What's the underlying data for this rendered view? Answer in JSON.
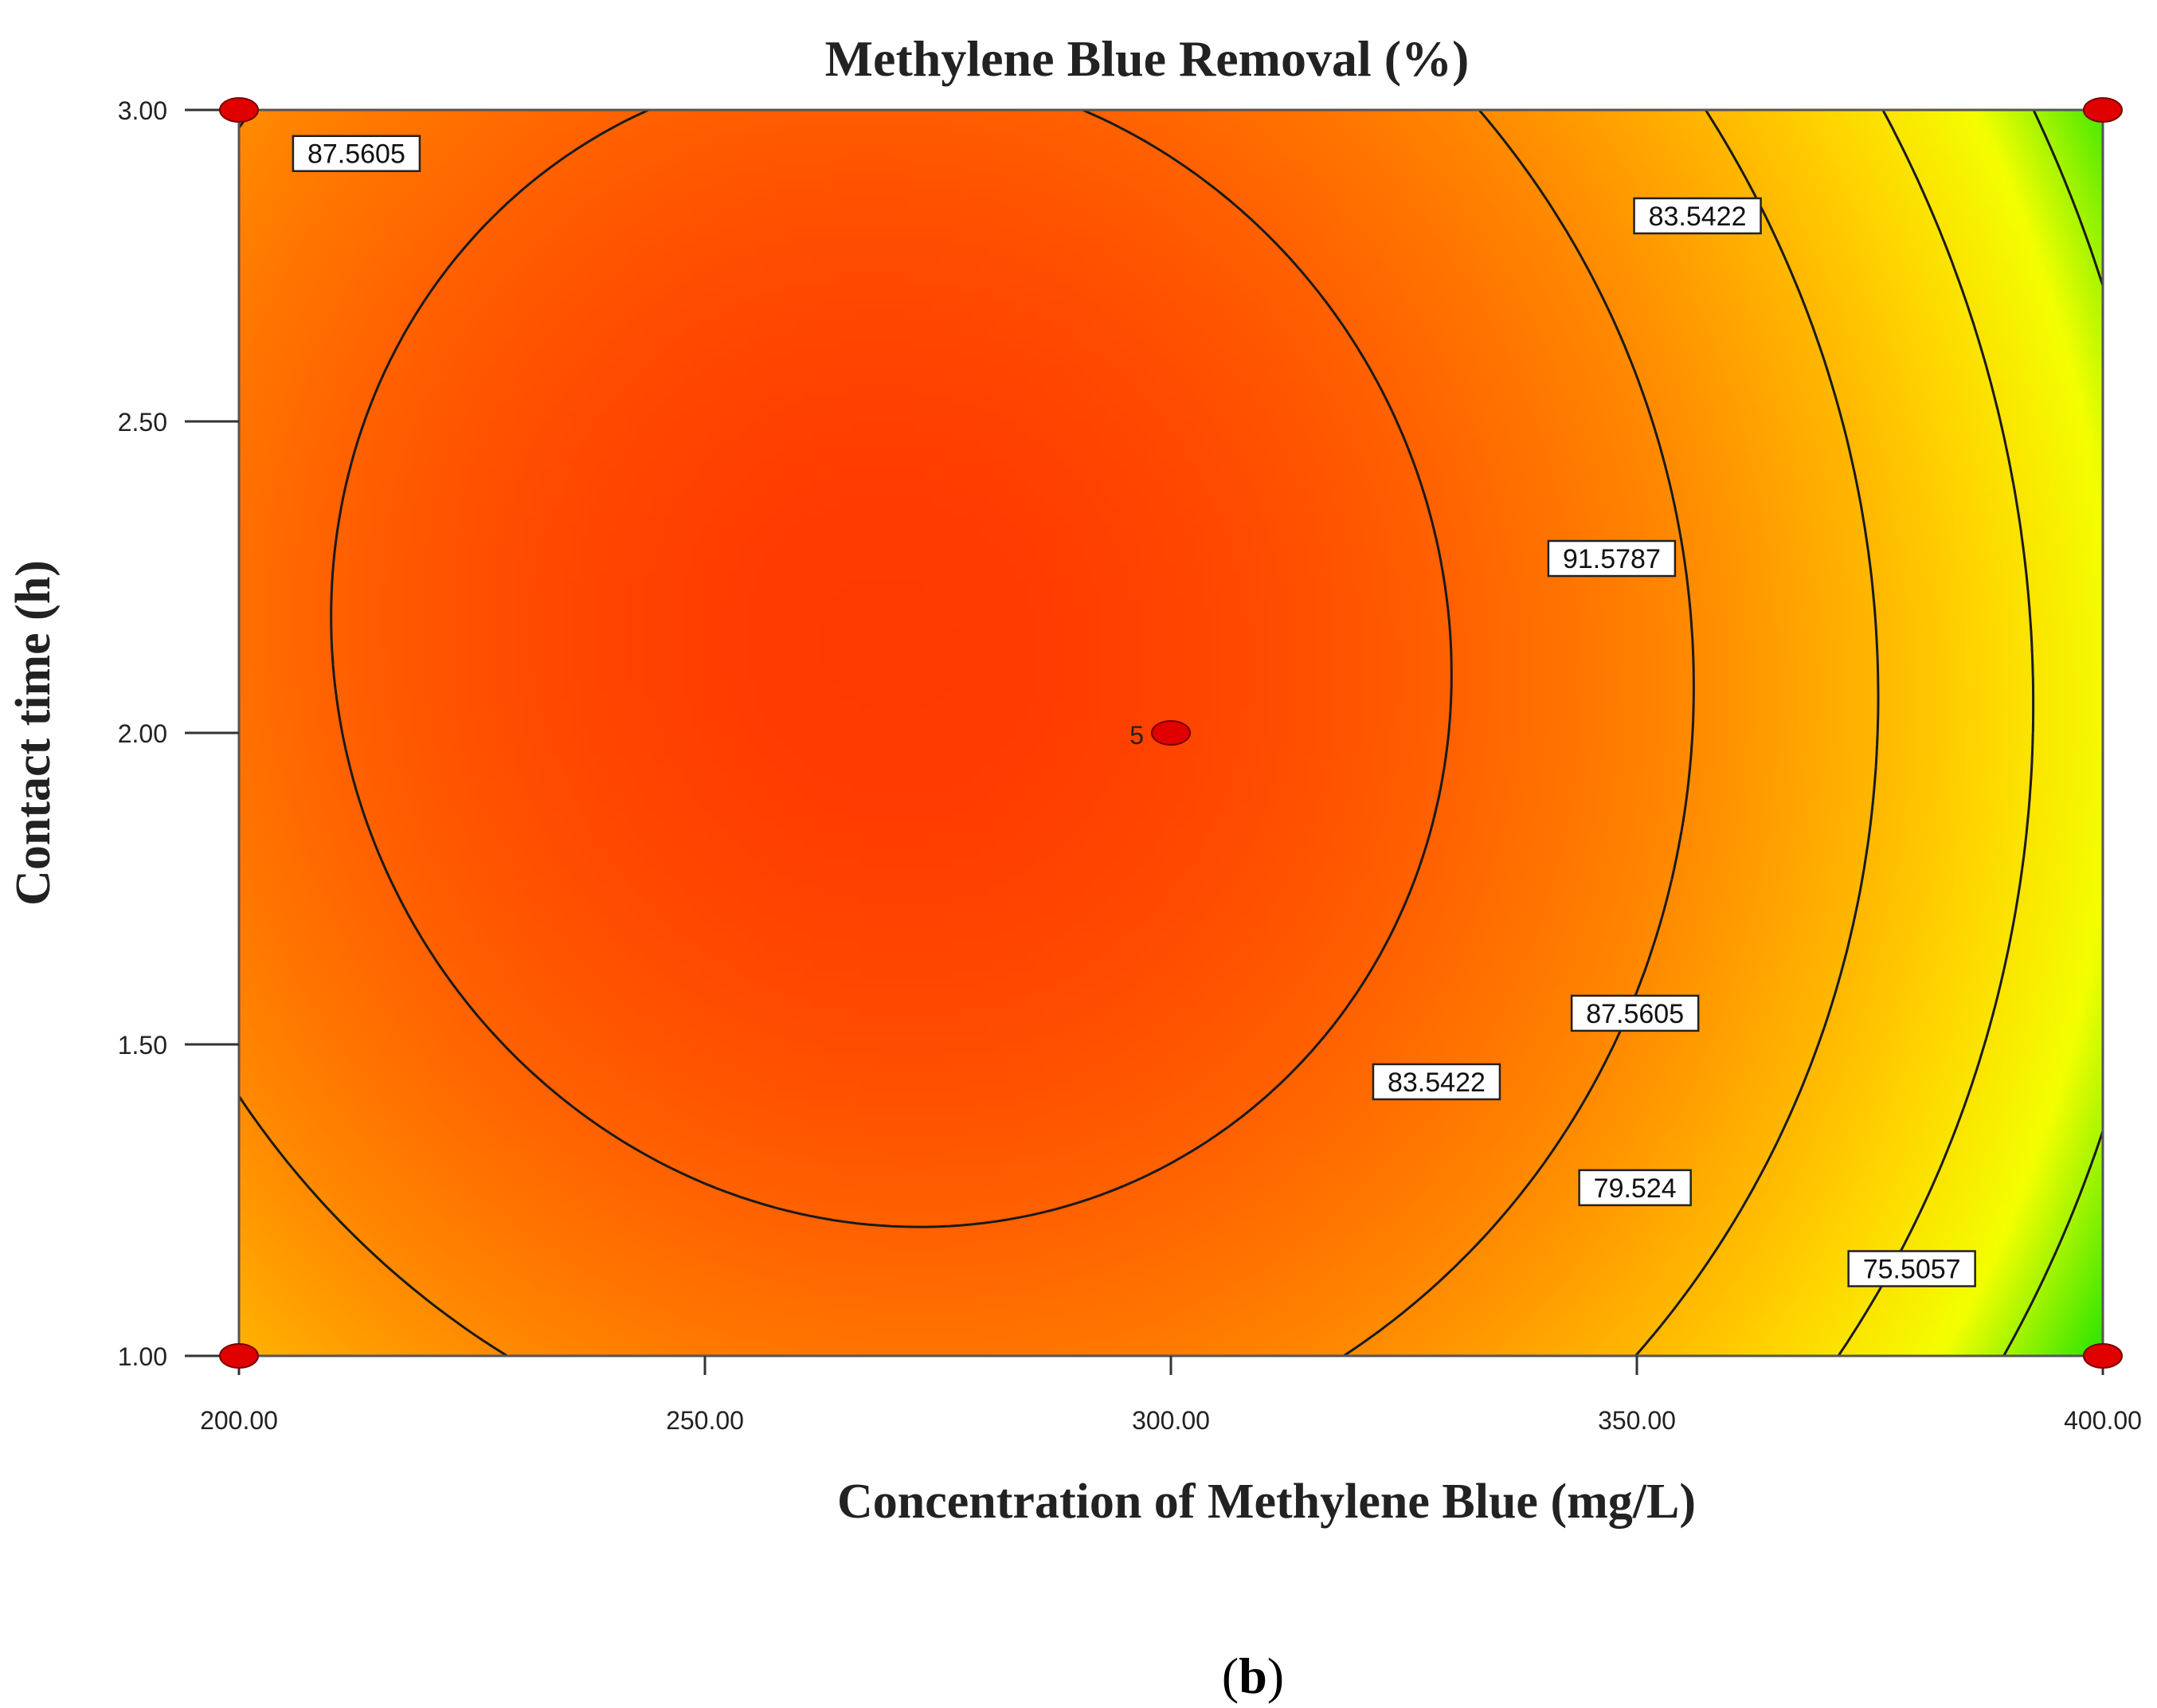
{
  "chart_data": {
    "type": "contour",
    "title": "Methylene Blue Removal (%)",
    "xlabel": "Concentration of Methylene Blue (mg/L)",
    "ylabel": "Contact time (h)",
    "xlim": [
      200,
      400
    ],
    "ylim": [
      1,
      3
    ],
    "x_ticks": [
      "200.00",
      "250.00",
      "300.00",
      "350.00",
      "400.00"
    ],
    "y_ticks": [
      "1.00",
      "1.50",
      "2.00",
      "2.50",
      "3.00"
    ],
    "surface_maximum": {
      "x": 270,
      "y": 2.14
    },
    "color_scale": [
      "#ff3a00",
      "#ff8c00",
      "#ffd600",
      "#f4ff00",
      "#00e000"
    ],
    "contour_levels": [
      {
        "value": 91.5787,
        "label": "91.5787"
      },
      {
        "value": 87.5605,
        "label": "87.5605"
      },
      {
        "value": 83.5422,
        "label": "83.5422"
      },
      {
        "value": 79.524,
        "label": "79.524"
      },
      {
        "value": 75.5057,
        "label": "75.5057"
      }
    ],
    "contour_labels": [
      {
        "text": "87.5605",
        "x": 212.6,
        "y": 2.93
      },
      {
        "text": "83.5422",
        "x": 356.5,
        "y": 2.83
      },
      {
        "text": "91.5787",
        "x": 347.3,
        "y": 2.28
      },
      {
        "text": "87.5605",
        "x": 349.8,
        "y": 1.55
      },
      {
        "text": "83.5422",
        "x": 328.5,
        "y": 1.44
      },
      {
        "text": "79.524",
        "x": 349.8,
        "y": 1.27
      },
      {
        "text": "75.5057",
        "x": 379.5,
        "y": 1.14
      }
    ],
    "design_points": [
      {
        "x": 200,
        "y": 1
      },
      {
        "x": 400,
        "y": 1
      },
      {
        "x": 200,
        "y": 3
      },
      {
        "x": 400,
        "y": 3
      },
      {
        "x": 300,
        "y": 2,
        "label": "5"
      }
    ],
    "point_color": "#e00000",
    "grid": false,
    "legend": "none"
  },
  "panel_label": {
    "open": "(",
    "letter": "b",
    "close": ")"
  }
}
